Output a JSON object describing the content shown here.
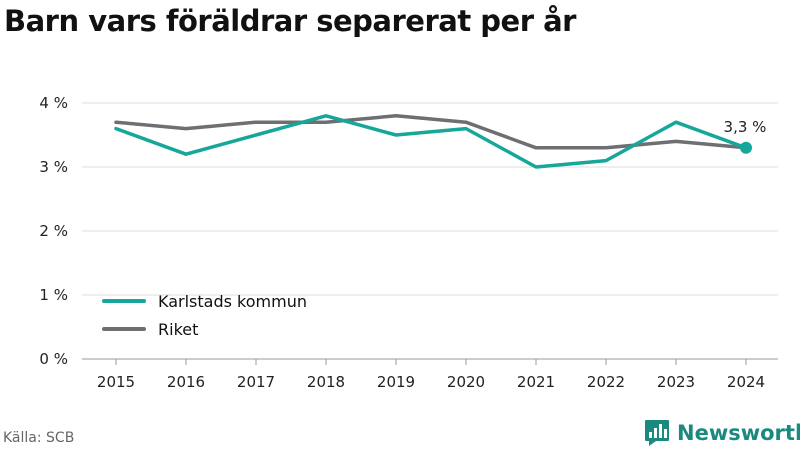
{
  "title": "Barn vars föräldrar separerat per år",
  "source": "Källa: SCB",
  "logo": {
    "text": "Newsworthy",
    "icon": "bar-chart-speech-bubble-icon",
    "color": "#1a8a7e"
  },
  "colors": {
    "grid": "#dddddd",
    "axis": "#999999"
  },
  "chart_data": {
    "type": "line",
    "x": [
      "2015",
      "2016",
      "2017",
      "2018",
      "2019",
      "2020",
      "2021",
      "2022",
      "2023",
      "2024"
    ],
    "ylim": [
      0,
      4
    ],
    "yticks": [
      0,
      1,
      2,
      3,
      4
    ],
    "ytick_labels": [
      "0 %",
      "1 %",
      "2 %",
      "3 %",
      "4 %"
    ],
    "grid": true,
    "legend_position": "bottom-left",
    "series": [
      {
        "name": "Karlstads kommun",
        "color": "#16a79a",
        "values": [
          3.6,
          3.2,
          3.5,
          3.8,
          3.5,
          3.6,
          3.0,
          3.1,
          3.7,
          3.3
        ]
      },
      {
        "name": "Riket",
        "color": "#6e6e73",
        "values": [
          3.7,
          3.6,
          3.7,
          3.7,
          3.8,
          3.7,
          3.3,
          3.3,
          3.4,
          3.3
        ]
      }
    ],
    "annotation": {
      "series": "Karlstads kommun",
      "x": "2024",
      "y": 3.3,
      "label": "3,3 %"
    }
  }
}
